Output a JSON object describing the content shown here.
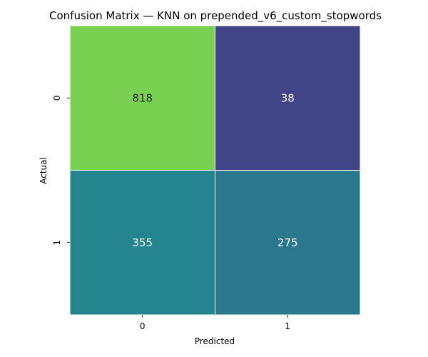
{
  "chart_data": {
    "type": "heatmap",
    "title": "Confusion Matrix — KNN on prepended_v6_custom_stopwords",
    "xlabel": "Predicted",
    "ylabel": "Actual",
    "x_categories": [
      "0",
      "1"
    ],
    "y_categories": [
      "0",
      "1"
    ],
    "values": [
      [
        818,
        38
      ],
      [
        355,
        275
      ]
    ],
    "colormap": "viridis",
    "colorbar": false,
    "cell_colors": [
      [
        "#7ad151",
        "#414487"
      ],
      [
        "#25858e",
        "#2a788e"
      ]
    ],
    "annotation_text_colors": [
      [
        "#262626",
        "#ffffff"
      ],
      [
        "#ffffff",
        "#ffffff"
      ]
    ]
  }
}
